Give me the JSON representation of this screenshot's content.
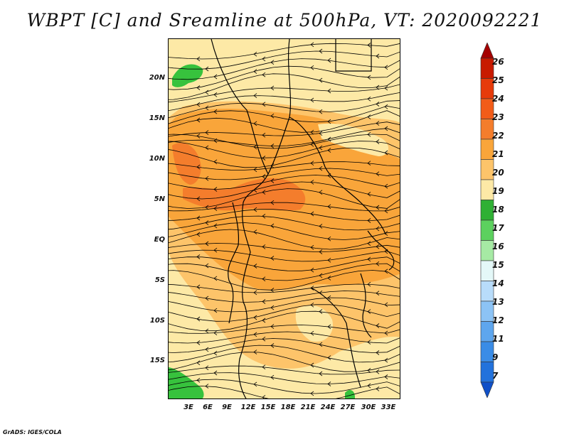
{
  "title": "WBPT [C] and Sreamline at 500hPa, VT: 2020092221",
  "credit": "GrADS: IGES/COLA",
  "map": {
    "latitude_labels": [
      "20N",
      "15N",
      "10N",
      "5N",
      "EQ",
      "5S",
      "10S",
      "15S"
    ],
    "longitude_labels": [
      "3E",
      "6E",
      "9E",
      "12E",
      "15E",
      "18E",
      "21E",
      "24E",
      "27E",
      "30E",
      "33E"
    ],
    "fill_colors": {
      "pale_yellow": "#fde9a6",
      "light_orange": "#fdc46a",
      "orange": "#f9a53a",
      "dark_orange": "#f47d2c",
      "green": "#37c23d"
    },
    "streamline_color": "#000000"
  },
  "colorbar": {
    "labels": [
      "26",
      "25",
      "24",
      "23",
      "22",
      "21",
      "20",
      "19",
      "18",
      "17",
      "16",
      "15",
      "14",
      "13",
      "12",
      "11",
      "9",
      "7"
    ],
    "colors": [
      "#a50000",
      "#c81a00",
      "#e63a0a",
      "#f25c19",
      "#f47d2c",
      "#f9a53a",
      "#fdc46a",
      "#fde9a6",
      "#2fb034",
      "#5cd15e",
      "#a6eaa4",
      "#e4f8f8",
      "#b8dcfa",
      "#8cc3f5",
      "#5ea6ee",
      "#3a8ce6",
      "#2272dc",
      "#1050c8"
    ]
  }
}
